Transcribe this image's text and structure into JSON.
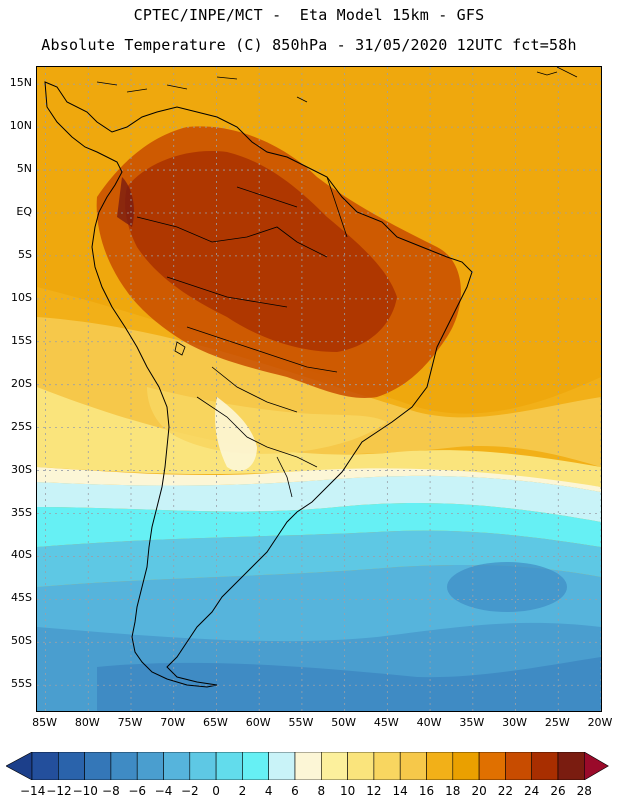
{
  "header": {
    "line1": "CPTEC/INPE/MCT -  Eta Model 15km - GFS",
    "line2": "Absolute Temperature (C) 850hPa - 31/05/2020 12UTC fct=58h"
  },
  "map": {
    "latitude_labels": [
      "15N",
      "10N",
      "5N",
      "EQ",
      "5S",
      "10S",
      "15S",
      "20S",
      "25S",
      "30S",
      "35S",
      "40S",
      "45S",
      "50S",
      "55S"
    ],
    "longitude_labels": [
      "85W",
      "80W",
      "75W",
      "70W",
      "65W",
      "60W",
      "55W",
      "50W",
      "45W",
      "40W",
      "35W",
      "30W",
      "25W",
      "20W"
    ],
    "lat_range": [
      17,
      -58
    ],
    "lon_range": [
      -86,
      -20
    ],
    "field": "temperature_850hPa",
    "unit": "C"
  },
  "colorbar": {
    "levels": [
      "-14",
      "-12",
      "-10",
      "-8",
      "-6",
      "-4",
      "-2",
      "0",
      "2",
      "4",
      "6",
      "8",
      "10",
      "12",
      "14",
      "16",
      "18",
      "20",
      "22",
      "24",
      "26",
      "28"
    ],
    "colors": [
      "#1c3f8a",
      "#234f9c",
      "#2a63ab",
      "#3477b8",
      "#3f8bc4",
      "#4a9ecf",
      "#56b4dc",
      "#5ec8e4",
      "#62dcec",
      "#66f0f4",
      "#c9f3f8",
      "#fcf6d6",
      "#fcf09c",
      "#fae47c",
      "#f8d660",
      "#f6c84a",
      "#f2b018",
      "#eaa000",
      "#e07000",
      "#c84c00",
      "#a82e00",
      "#7a1c10",
      "#9a0a2a"
    ]
  }
}
